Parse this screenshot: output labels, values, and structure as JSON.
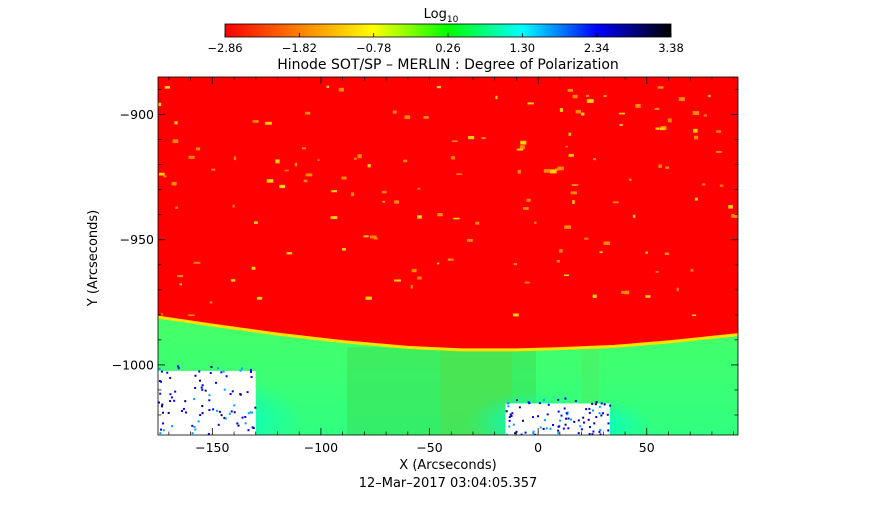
{
  "chart_data": {
    "type": "heatmap",
    "title": "Hinode SOT/SP – MERLIN : Degree of Polarization",
    "colorbar": {
      "label_main": "Log",
      "label_sub": "10",
      "ticks": [
        -2.86,
        -1.82,
        -0.78,
        0.26,
        1.3,
        2.34,
        3.38
      ],
      "tick_labels": [
        "−2.86",
        "−1.82",
        "−0.78",
        "0.26",
        "1.30",
        "2.34",
        "3.38"
      ],
      "colormap": [
        "#ff0000",
        "#ff8000",
        "#ffff00",
        "#00ff00",
        "#00ffff",
        "#0000ff",
        "#000000"
      ]
    },
    "xlabel": "X (Arcseconds)",
    "ylabel": "Y (Arcseconds)",
    "xlim": [
      -175,
      92
    ],
    "ylim": [
      -1028,
      -885
    ],
    "xticks": [
      -150,
      -100,
      -50,
      0,
      50
    ],
    "xtick_labels": [
      "−150",
      "−100",
      "−50",
      "0",
      "50"
    ],
    "yticks": [
      -900,
      -950,
      -1000
    ],
    "ytick_labels": [
      "−900",
      "−950",
      "−1000"
    ],
    "limb_boundary": {
      "x": [
        -175,
        -150,
        -120,
        -90,
        -60,
        -35,
        -10,
        10,
        35,
        60,
        92
      ],
      "y": [
        -980.5,
        -983.7,
        -987.3,
        -990.3,
        -992.6,
        -993.6,
        -993.6,
        -993.1,
        -992.2,
        -990.4,
        -987.5
      ]
    },
    "off_disk_gaps": [
      {
        "x": [
          -175,
          -130
        ],
        "y_top": -1000,
        "y_bottom": -1028
      },
      {
        "x": [
          -15,
          33
        ],
        "y_top": -1013,
        "y_bottom": -1028
      }
    ],
    "grid": false,
    "legend": "none"
  },
  "footer": {
    "timestamp": "12–Mar–2017 03:04:05.357"
  },
  "colors": {
    "disk": "#ff0000",
    "off_limb": "#00ff00",
    "background": "#ffffff"
  }
}
